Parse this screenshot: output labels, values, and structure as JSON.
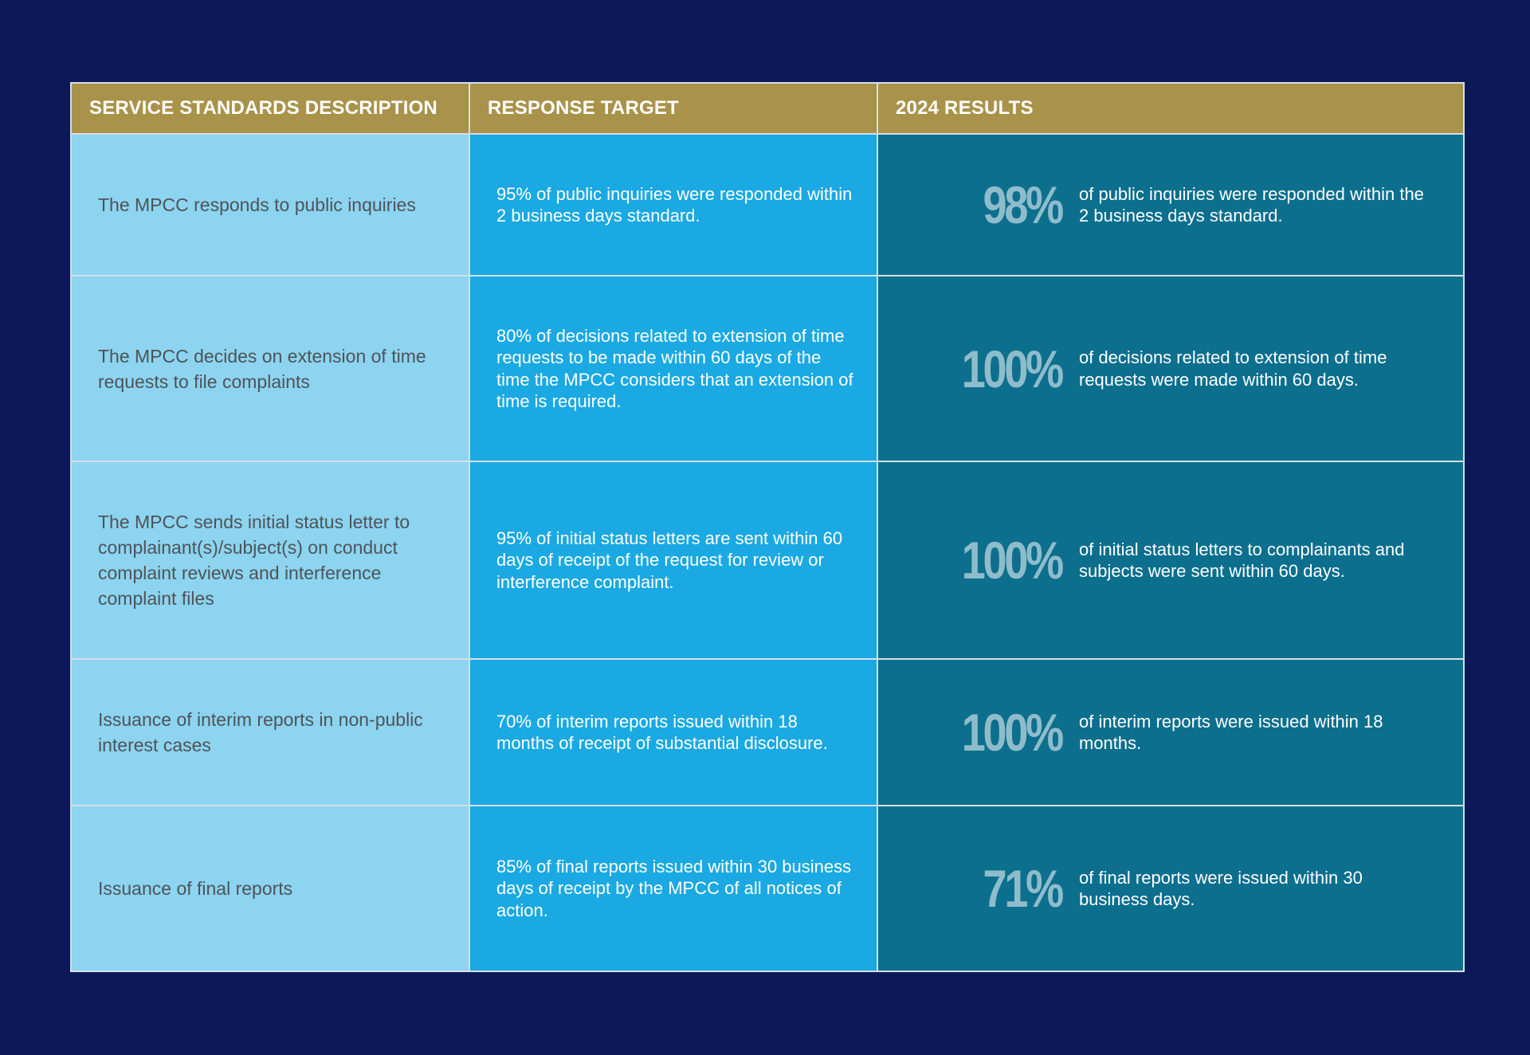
{
  "table": {
    "headers": [
      "SERVICE STANDARDS DESCRIPTION",
      "RESPONSE TARGET",
      "2024 RESULTS"
    ],
    "rows": [
      {
        "description": "The MPCC responds to public inquiries",
        "target": "95% of public inquiries were responded within 2 business days standard.",
        "result_value": "98%",
        "result_text": "of public inquiries were responded within the 2 business days standard."
      },
      {
        "description": "The MPCC decides on extension of time requests to file complaints",
        "target": "80% of decisions related to extension of time requests to be made within 60 days of the time the MPCC considers that an extension of time is required.",
        "result_value": "100%",
        "result_text": "of decisions related to extension of time requests were made within 60 days."
      },
      {
        "description": "The MPCC sends initial status letter to complainant(s)/subject(s) on conduct complaint reviews and interference complaint files",
        "target": "95% of initial status letters are sent within 60 days of receipt of the request for review or interference complaint.",
        "result_value": "100%",
        "result_text": "of initial status letters to complainants and subjects were sent within 60 days."
      },
      {
        "description": "Issuance of interim reports in non-public interest cases",
        "target": "70% of interim reports issued within 18 months of receipt of substantial disclosure.",
        "result_value": "100%",
        "result_text": "of interim reports were issued within 18 months."
      },
      {
        "description": "Issuance of final reports",
        "target": "85% of final reports issued within 30 business days of receipt by the MPCC of all notices of action.",
        "result_value": "71%",
        "result_text": "of final reports were issued within 30 business days."
      }
    ]
  },
  "colors": {
    "page_background": "#0b1a57",
    "header_background": "#a99249",
    "description_background": "#8cd4f0",
    "target_background": "#1aa9e2",
    "result_background": "#0c6f8e",
    "result_value_color": "#8fbccb",
    "border": "#d9dde6"
  }
}
